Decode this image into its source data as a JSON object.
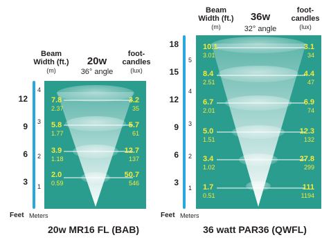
{
  "left": {
    "header": {
      "beam_l1": "Beam",
      "beam_l2": "Width (ft.)",
      "beam_unit": "(m)",
      "watt": "20w",
      "angle": "36° angle",
      "fc_l1": "foot-",
      "fc_l2": "candles",
      "fc_unit": "(lux)"
    },
    "rows": [
      {
        "width_ft": "7.8",
        "width_m": "2.37",
        "fc": "3.2",
        "lux": "35"
      },
      {
        "width_ft": "5.8",
        "width_m": "1.77",
        "fc": "5.7",
        "lux": "61"
      },
      {
        "width_ft": "3.9",
        "width_m": "1.18",
        "fc": "12.7",
        "lux": "137"
      },
      {
        "width_ft": "2.0",
        "width_m": "0.59",
        "fc": "50.7",
        "lux": "546"
      }
    ],
    "feet_ticks": [
      "12",
      "9",
      "6",
      "3"
    ],
    "meter_ticks": [
      "4",
      "3",
      "2",
      "1"
    ],
    "axis_feet": "Feet",
    "axis_meters": "Meters",
    "caption": "20w MR16 FL (BAB)"
  },
  "right": {
    "header": {
      "beam_l1": "Beam",
      "beam_l2": "Width (ft.)",
      "beam_unit": "(m)",
      "watt": "36w",
      "angle": "32° angle",
      "fc_l1": "foot-",
      "fc_l2": "candles",
      "fc_unit": "(lux)"
    },
    "rows": [
      {
        "width_ft": "10.1",
        "width_m": "3.01",
        "fc": "3.1",
        "lux": "34"
      },
      {
        "width_ft": "8.4",
        "width_m": "2.51",
        "fc": "4.4",
        "lux": "47"
      },
      {
        "width_ft": "6.7",
        "width_m": "2.01",
        "fc": "6.9",
        "lux": "74"
      },
      {
        "width_ft": "5.0",
        "width_m": "1.51",
        "fc": "12.3",
        "lux": "132"
      },
      {
        "width_ft": "3.4",
        "width_m": "1.02",
        "fc": "27.8",
        "lux": "299"
      },
      {
        "width_ft": "1.7",
        "width_m": "0.51",
        "fc": "111",
        "lux": "1194"
      }
    ],
    "feet_ticks": [
      "18",
      "15",
      "12",
      "9",
      "6",
      "3"
    ],
    "meter_ticks": [
      "5",
      "4",
      "3",
      "2",
      "1"
    ],
    "axis_feet": "Feet",
    "axis_meters": "Meters",
    "caption": "36 watt PAR36 (QWFL)"
  },
  "colors": {
    "panel": "#2a9d8f",
    "values": "#f4ea3c",
    "scale_bar": "#29a8e0"
  }
}
